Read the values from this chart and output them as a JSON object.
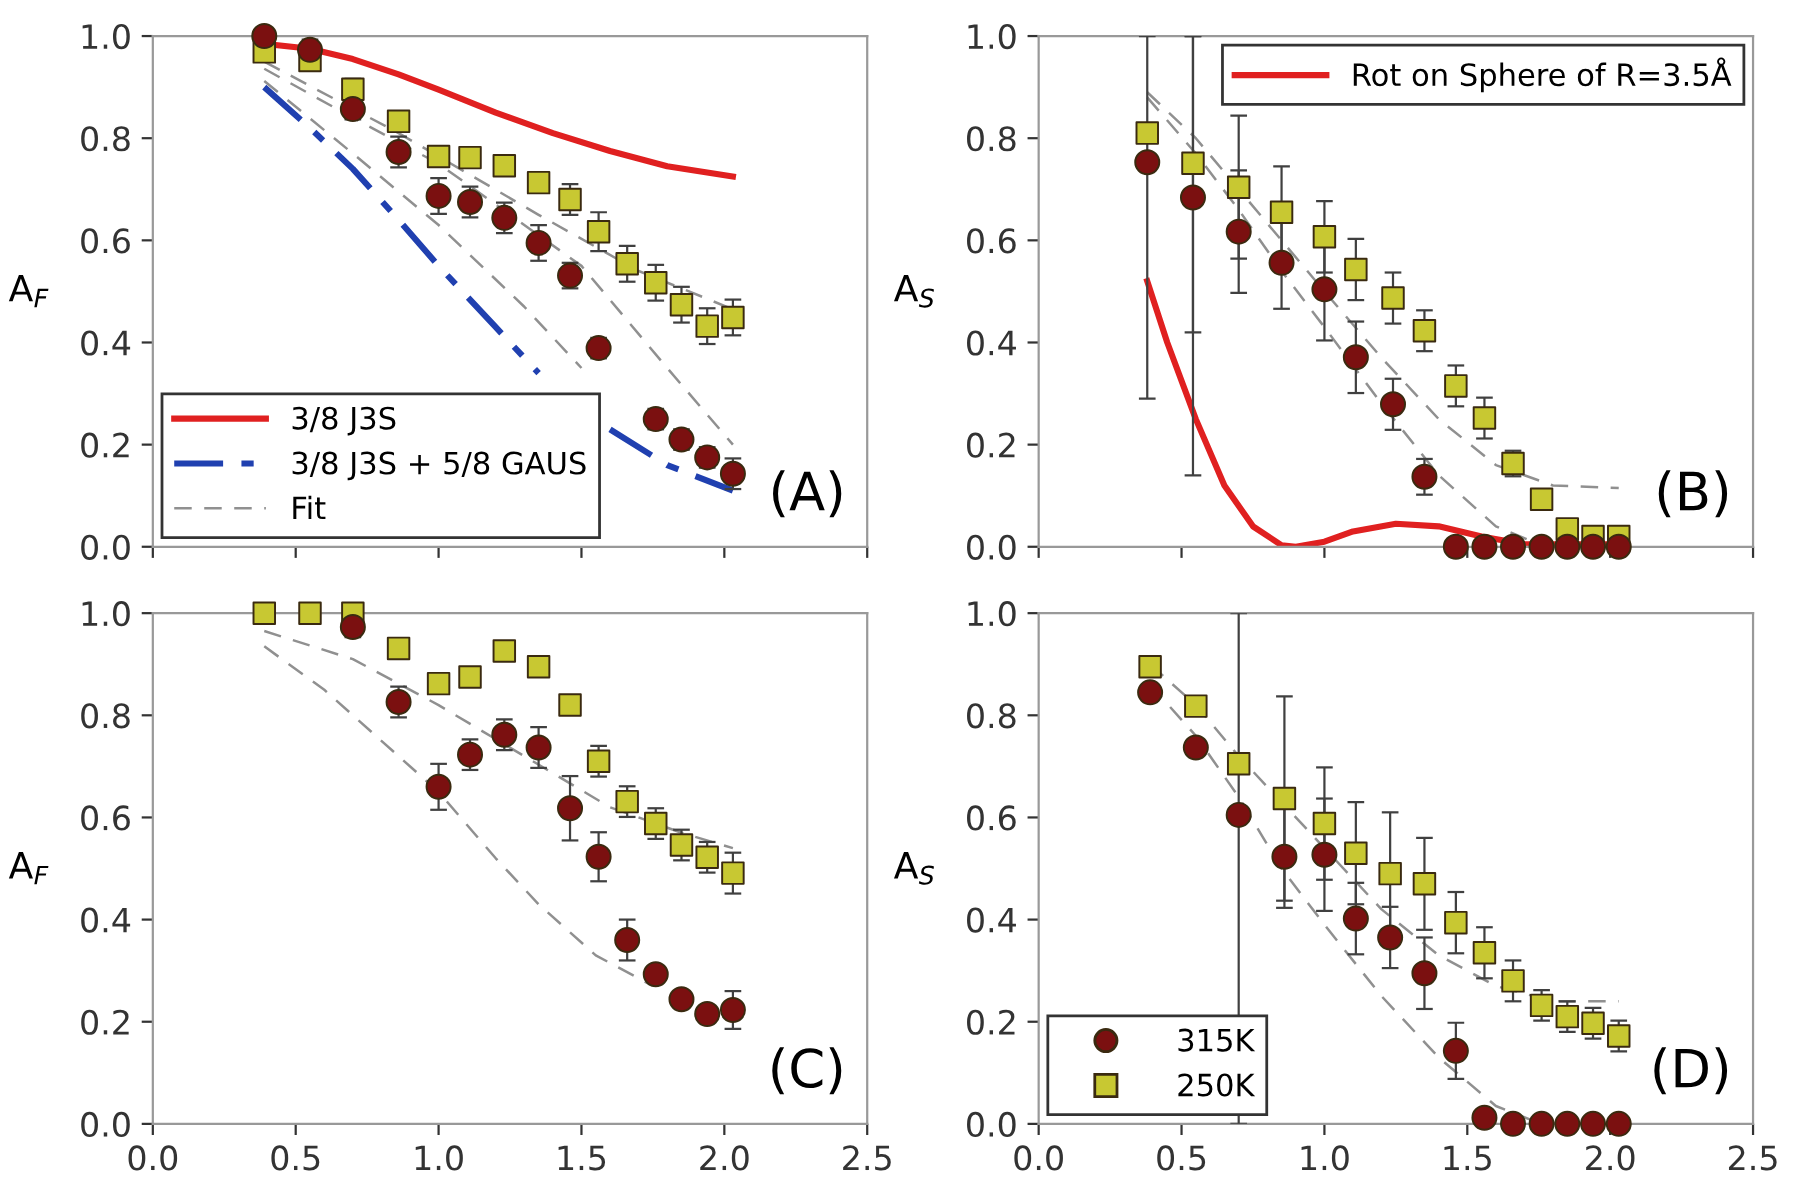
{
  "chart_data": [
    {
      "type": "scatter",
      "ylabel": "A$_{F}$",
      "annotations": [
        "(A)"
      ],
      "xlim": [
        0,
        2.5
      ],
      "ylim": [
        0,
        1
      ],
      "xticks": [
        {
          "value": 0,
          "label": null
        },
        {
          "value": 0.5,
          "label": null
        },
        {
          "value": 1,
          "label": null
        },
        {
          "value": 1.5,
          "label": null
        },
        {
          "value": 2,
          "label": null
        },
        {
          "value": 2.5,
          "label": null
        }
      ],
      "yticks": [
        {
          "value": 0,
          "label": "0.0"
        },
        {
          "value": 0.2,
          "label": "0.2"
        },
        {
          "value": 0.4,
          "label": "0.4"
        },
        {
          "value": 0.6,
          "label": "0.6"
        },
        {
          "value": 0.8,
          "label": "0.8"
        },
        {
          "value": 1,
          "label": "1.0"
        }
      ],
      "tick_labels": "y",
      "grid": false,
      "legend": "bottom left",
      "series": [
        {
          "type": "line",
          "color": "#909090",
          "line_style": "dashed",
          "marker": "none",
          "x": [
            0.39,
            0.86,
            1.35,
            1.7,
            2.03
          ],
          "values": [
            0.95,
            0.81,
            0.65,
            0.54,
            0.465
          ]
        },
        {
          "type": "line",
          "color": "#909090",
          "line_style": "dashed",
          "marker": "none",
          "x": [
            0.39,
            0.7,
            1.0,
            1.5,
            1.8,
            2.03
          ],
          "values": [
            0.936,
            0.84,
            0.75,
            0.55,
            0.35,
            0.2
          ]
        },
        {
          "type": "line",
          "name": "3/8 J3S",
          "color": "#e02020",
          "line_style": "solid",
          "marker": "none",
          "x": [
            0.39,
            0.55,
            0.7,
            0.86,
            1.0,
            1.2,
            1.4,
            1.6,
            1.8,
            2.03
          ],
          "values": [
            0.985,
            0.975,
            0.955,
            0.925,
            0.895,
            0.85,
            0.81,
            0.775,
            0.745,
            0.725
          ]
        },
        {
          "type": "line",
          "name": "3/8 J3S + 5/8 GAUS",
          "color": "#2040b0",
          "line_style": "dashdot",
          "marker": "none",
          "x": [
            0.39,
            0.55,
            0.7,
            0.86,
            1.0,
            1.2,
            1.35,
            1.5,
            1.6,
            1.8,
            2.03
          ],
          "values": [
            0.9,
            0.82,
            0.74,
            0.64,
            0.55,
            0.43,
            0.34,
            null,
            0.23,
            0.16,
            0.11
          ]
        },
        {
          "type": "line",
          "name": "Fit",
          "color": "#909090",
          "line_style": "dashed",
          "marker": "none",
          "x": [
            0.39,
            0.7,
            1.0,
            1.3,
            1.5
          ],
          "values": [
            0.912,
            0.77,
            0.63,
            0.47,
            0.35
          ]
        },
        {
          "color": "#c8c832",
          "marker": "square",
          "x": [
            0.39,
            0.55,
            0.7,
            0.86,
            1.0,
            1.11,
            1.23,
            1.35,
            1.46,
            1.56,
            1.66,
            1.76,
            1.85,
            1.94,
            2.03
          ],
          "values": [
            0.969,
            0.952,
            0.896,
            0.833,
            0.764,
            0.762,
            0.746,
            0.713,
            0.68,
            0.617,
            0.554,
            0.517,
            0.474,
            0.432,
            0.449
          ],
          "errors": [
            0.01,
            0.02,
            0.02,
            0.02,
            0.02,
            0.02,
            0.02,
            0.02,
            0.03,
            0.038,
            0.035,
            0.035,
            0.035,
            0.035,
            0.035
          ]
        },
        {
          "color": "#7b1010",
          "marker": "circle",
          "x": [
            0.39,
            0.55,
            0.7,
            0.86,
            1.0,
            1.11,
            1.23,
            1.35,
            1.46,
            1.56,
            1.66,
            1.76,
            1.85,
            1.94,
            2.03
          ],
          "values": [
            1.0,
            0.973,
            0.857,
            0.773,
            0.687,
            0.675,
            0.644,
            0.595,
            0.531,
            0.389,
            null,
            0.25,
            0.21,
            0.175,
            0.143
          ],
          "errors": [
            null,
            0.02,
            0.02,
            0.03,
            0.035,
            0.03,
            0.03,
            0.035,
            0.025,
            0.02,
            null,
            0.02,
            0.02,
            0.02,
            0.03
          ]
        }
      ]
    },
    {
      "type": "scatter",
      "ylabel": "A$_{S}$",
      "annotations": [
        "(B)"
      ],
      "xlim": [
        0,
        2.5
      ],
      "ylim": [
        0,
        1
      ],
      "xticks": [
        {
          "value": 0,
          "label": null
        },
        {
          "value": 0.5,
          "label": null
        },
        {
          "value": 1,
          "label": null
        },
        {
          "value": 1.5,
          "label": null
        },
        {
          "value": 2,
          "label": null
        },
        {
          "value": 2.5,
          "label": null
        }
      ],
      "yticks": [
        {
          "value": 0,
          "label": "0.0"
        },
        {
          "value": 0.2,
          "label": "0.2"
        },
        {
          "value": 0.4,
          "label": "0.4"
        },
        {
          "value": 0.6,
          "label": "0.6"
        },
        {
          "value": 0.8,
          "label": "0.8"
        },
        {
          "value": 1,
          "label": "1.0"
        }
      ],
      "tick_labels": "y",
      "grid": false,
      "legend": "top right",
      "series": [
        {
          "type": "line",
          "color": "#909090",
          "line_style": "dashed",
          "marker": "none",
          "x": [
            0.38,
            0.55,
            0.7,
            0.85,
            1.0,
            1.2,
            1.4,
            1.6,
            1.8,
            2.03
          ],
          "values": [
            0.89,
            0.8,
            0.7,
            0.6,
            0.5,
            0.37,
            0.25,
            0.16,
            0.12,
            0.115
          ]
        },
        {
          "type": "line",
          "color": "#909090",
          "line_style": "dashed",
          "marker": "none",
          "x": [
            0.38,
            0.55,
            0.7,
            0.85,
            1.0,
            1.2,
            1.4,
            1.6,
            1.75,
            2.03
          ],
          "values": [
            0.88,
            0.77,
            0.66,
            0.54,
            0.43,
            0.28,
            0.14,
            0.04,
            0.005,
            0.0
          ]
        },
        {
          "type": "line",
          "name": "Rot on Sphere of R=3.5Å",
          "color": "#e02020",
          "line_style": "solid",
          "marker": "none",
          "x": [
            0.38,
            0.45,
            0.55,
            0.65,
            0.75,
            0.85,
            0.9,
            1.0,
            1.1,
            1.25,
            1.4,
            1.55,
            1.7,
            2.03
          ],
          "values": [
            0.52,
            0.4,
            0.25,
            0.12,
            0.04,
            0.003,
            0.0,
            0.01,
            0.03,
            0.045,
            0.04,
            0.02,
            0.005,
            0.005
          ]
        },
        {
          "color": "#c8c832",
          "marker": "square",
          "x": [
            0.38,
            0.54,
            0.7,
            0.85,
            1.0,
            1.11,
            1.24,
            1.35,
            1.46,
            1.56,
            1.66,
            1.76,
            1.85,
            1.94,
            2.03
          ],
          "values": [
            0.81,
            0.751,
            0.704,
            0.655,
            0.607,
            0.543,
            0.487,
            0.423,
            0.315,
            0.252,
            0.163,
            0.093,
            0.035,
            0.02,
            0.02
          ],
          "errors": [
            null,
            [
              0.42,
              1.0
            ],
            0.14,
            0.09,
            0.07,
            0.06,
            0.05,
            0.04,
            0.04,
            0.04,
            0.025,
            0.015,
            null,
            null,
            null
          ]
        },
        {
          "color": "#7b1010",
          "marker": "circle",
          "x": [
            0.38,
            0.54,
            0.7,
            0.85,
            1.0,
            1.11,
            1.24,
            1.35,
            1.46,
            1.56,
            1.66,
            1.76,
            1.85,
            1.94,
            2.03
          ],
          "values": [
            0.753,
            0.684,
            0.617,
            0.556,
            0.504,
            0.371,
            0.279,
            0.137,
            0.0,
            0.0,
            0.0,
            0.0,
            0.0,
            0.0,
            0.0
          ],
          "errors": [
            [
              0.29,
              1.0
            ],
            [
              0.14,
              1.0
            ],
            0.12,
            0.09,
            0.1,
            0.07,
            0.05,
            0.035,
            null,
            null,
            null,
            null,
            null,
            null,
            null
          ]
        }
      ]
    },
    {
      "type": "scatter",
      "ylabel": "A$_{F}$",
      "annotations": [
        "(C)"
      ],
      "xlim": [
        0,
        2.5
      ],
      "ylim": [
        0,
        1
      ],
      "xticks": [
        {
          "value": 0,
          "label": "0.0"
        },
        {
          "value": 0.5,
          "label": "0.5"
        },
        {
          "value": 1,
          "label": "1.0"
        },
        {
          "value": 1.5,
          "label": "1.5"
        },
        {
          "value": 2,
          "label": "2.0"
        },
        {
          "value": 2.5,
          "label": "2.5"
        }
      ],
      "yticks": [
        {
          "value": 0,
          "label": "0.0"
        },
        {
          "value": 0.2,
          "label": "0.2"
        },
        {
          "value": 0.4,
          "label": "0.4"
        },
        {
          "value": 0.6,
          "label": "0.6"
        },
        {
          "value": 0.8,
          "label": "0.8"
        },
        {
          "value": 1,
          "label": "1.0"
        }
      ],
      "grid": false,
      "series": [
        {
          "type": "line",
          "color": "#909090",
          "line_style": "dashed",
          "marker": "none",
          "x": [
            0.39,
            0.7,
            1.0,
            1.3,
            1.6,
            1.85,
            2.03
          ],
          "values": [
            0.965,
            0.91,
            0.82,
            0.72,
            0.62,
            0.57,
            0.54
          ]
        },
        {
          "type": "line",
          "color": "#909090",
          "line_style": "dashed",
          "marker": "none",
          "x": [
            0.39,
            0.6,
            0.8,
            1.0,
            1.2,
            1.35,
            1.55,
            1.75
          ],
          "values": [
            0.935,
            0.85,
            0.75,
            0.65,
            0.52,
            0.43,
            0.33,
            0.27
          ]
        },
        {
          "color": "#c8c832",
          "marker": "square",
          "x": [
            0.39,
            0.55,
            0.7,
            0.86,
            1.0,
            1.11,
            1.23,
            1.35,
            1.46,
            1.56,
            1.66,
            1.76,
            1.85,
            1.94,
            2.03
          ],
          "values": [
            1.0,
            1.0,
            1.0,
            0.931,
            0.862,
            0.875,
            0.926,
            0.895,
            0.82,
            0.71,
            0.631,
            0.588,
            0.546,
            0.522,
            0.491
          ],
          "errors": [
            null,
            null,
            null,
            null,
            0.015,
            0.015,
            null,
            null,
            0.015,
            0.03,
            0.03,
            0.03,
            0.03,
            0.03,
            0.04
          ]
        },
        {
          "color": "#7b1010",
          "marker": "circle",
          "x": [
            0.7,
            0.86,
            1.0,
            1.11,
            1.23,
            1.35,
            1.46,
            1.56,
            1.66,
            1.76,
            1.85,
            1.94,
            2.03
          ],
          "values": [
            0.973,
            0.826,
            0.66,
            0.723,
            0.762,
            0.737,
            0.618,
            0.523,
            0.36,
            0.293,
            0.244,
            0.215,
            0.223
          ],
          "errors": [
            0.02,
            0.03,
            0.045,
            0.03,
            0.03,
            0.04,
            0.063,
            0.048,
            0.04,
            0.015,
            0.015,
            0.015,
            0.037
          ]
        }
      ]
    },
    {
      "type": "scatter",
      "ylabel": "A$_{S}$",
      "annotations": [
        "(D)"
      ],
      "xlim": [
        0,
        2.5
      ],
      "ylim": [
        0,
        1
      ],
      "xticks": [
        {
          "value": 0,
          "label": "0.0"
        },
        {
          "value": 0.5,
          "label": "0.5"
        },
        {
          "value": 1,
          "label": "1.0"
        },
        {
          "value": 1.5,
          "label": "1.5"
        },
        {
          "value": 2,
          "label": "2.0"
        },
        {
          "value": 2.5,
          "label": "2.5"
        }
      ],
      "yticks": [
        {
          "value": 0,
          "label": "0.0"
        },
        {
          "value": 0.2,
          "label": "0.2"
        },
        {
          "value": 0.4,
          "label": "0.4"
        },
        {
          "value": 0.6,
          "label": "0.6"
        },
        {
          "value": 0.8,
          "label": "0.8"
        },
        {
          "value": 1,
          "label": "1.0"
        }
      ],
      "grid": false,
      "legend": "bottom left",
      "series": [
        {
          "type": "line",
          "color": "#909090",
          "line_style": "dashed",
          "marker": "none",
          "x": [
            0.39,
            0.55,
            0.7,
            0.85,
            1.0,
            1.2,
            1.4,
            1.6,
            1.8,
            2.03
          ],
          "values": [
            0.9,
            0.82,
            0.72,
            0.63,
            0.54,
            0.42,
            0.33,
            0.27,
            0.24,
            0.24
          ]
        },
        {
          "type": "line",
          "color": "#909090",
          "line_style": "dashed",
          "marker": "none",
          "x": [
            0.39,
            0.55,
            0.7,
            0.85,
            1.0,
            1.2,
            1.4,
            1.6,
            1.75,
            2.03
          ],
          "values": [
            0.86,
            0.76,
            0.64,
            0.5,
            0.39,
            0.25,
            0.13,
            0.035,
            0.002,
            0.0
          ]
        },
        {
          "name": "315K",
          "color": "#7b1010",
          "marker": "circle",
          "x": [
            0.39,
            0.55,
            0.7,
            0.86,
            1.0,
            1.11,
            1.23,
            1.35,
            1.46,
            1.56,
            1.66,
            1.76,
            1.85,
            1.94,
            2.03
          ],
          "values": [
            0.845,
            0.737,
            0.605,
            0.523,
            0.527,
            0.402,
            0.365,
            0.295,
            0.143,
            0.012,
            0.0,
            0.0,
            0.0,
            0.0,
            0.0
          ],
          "errors": [
            null,
            null,
            [
              0.0,
              1.0
            ],
            0.1,
            0.11,
            0.07,
            0.06,
            0.07,
            0.055,
            null,
            null,
            null,
            null,
            null,
            null
          ]
        },
        {
          "name": "250K",
          "color": "#c8c832",
          "marker": "square",
          "x": [
            0.39,
            0.55,
            0.7,
            0.86,
            1.0,
            1.11,
            1.23,
            1.35,
            1.46,
            1.56,
            1.66,
            1.76,
            1.85,
            1.94,
            2.03
          ],
          "values": [
            0.895,
            0.818,
            0.705,
            0.637,
            0.588,
            0.53,
            0.49,
            0.47,
            0.394,
            0.335,
            0.28,
            0.232,
            0.21,
            0.197,
            0.172
          ],
          "errors": [
            null,
            null,
            null,
            0.2,
            0.11,
            0.1,
            0.12,
            0.09,
            0.06,
            0.05,
            0.04,
            0.03,
            0.03,
            0.03,
            0.03
          ]
        }
      ]
    }
  ]
}
